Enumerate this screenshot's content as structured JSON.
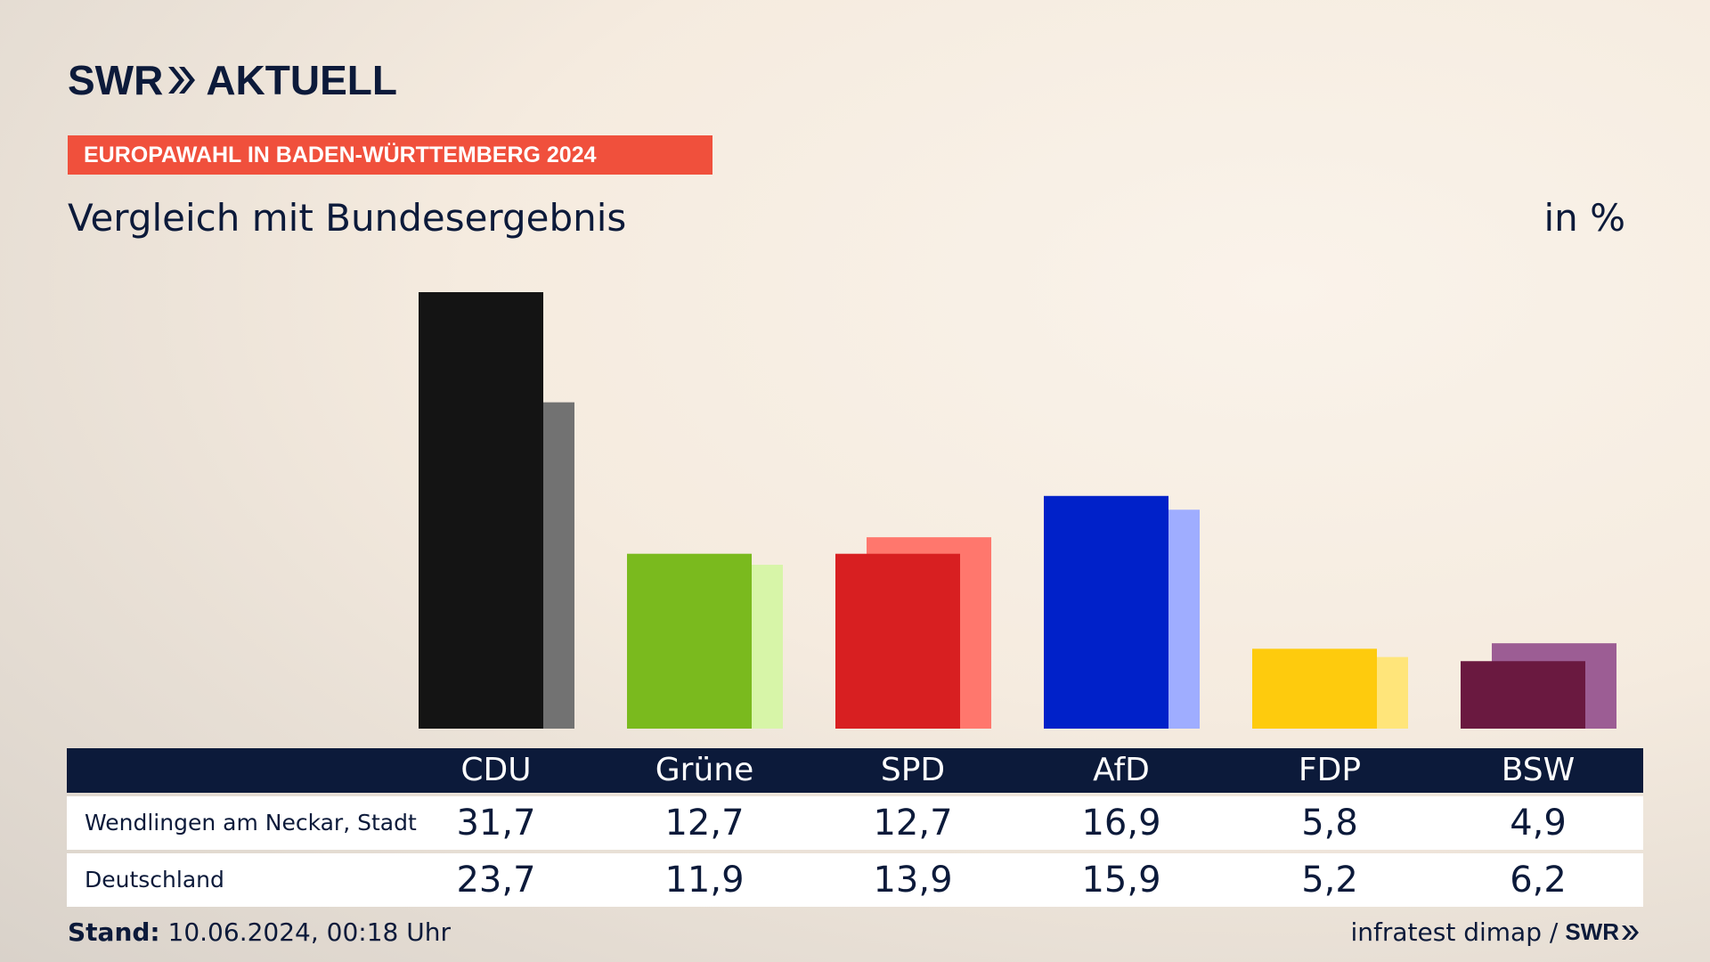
{
  "header": {
    "logo_swr": "SWR",
    "logo_aktuell": "AKTUELL",
    "badge": "EUROPAWAHL IN BADEN-WÜRTTEMBERG 2024",
    "subtitle": "Vergleich mit Bundesergebnis",
    "unit": "in %"
  },
  "chart_data": {
    "type": "bar",
    "categories": [
      "CDU",
      "Grüne",
      "SPD",
      "AfD",
      "FDP",
      "BSW"
    ],
    "series": [
      {
        "name": "Wendlingen am Neckar, Stadt",
        "values": [
          31.7,
          12.7,
          12.7,
          16.9,
          5.8,
          4.9
        ],
        "colors": [
          "#141414",
          "#7aba1e",
          "#d81f21",
          "#0021c9",
          "#fecb0d",
          "#6a1940"
        ]
      },
      {
        "name": "Deutschland",
        "values": [
          23.7,
          11.9,
          13.9,
          15.9,
          5.2,
          6.2
        ],
        "colors": [
          "#727272",
          "#d7f5a8",
          "#ff776d",
          "#9fadff",
          "#ffe57a",
          "#9c5d94"
        ]
      }
    ],
    "display_values": [
      [
        "31,7",
        "12,7",
        "12,7",
        "16,9",
        "5,8",
        "4,9"
      ],
      [
        "23,7",
        "11,9",
        "13,9",
        "15,9",
        "5,2",
        "6,2"
      ]
    ],
    "ylim": [
      0,
      31.7
    ]
  },
  "footer": {
    "stand_label": "Stand:",
    "stand_value": "10.06.2024, 00:18 Uhr",
    "source": "infratest dimap /",
    "source_logo": "SWR"
  }
}
